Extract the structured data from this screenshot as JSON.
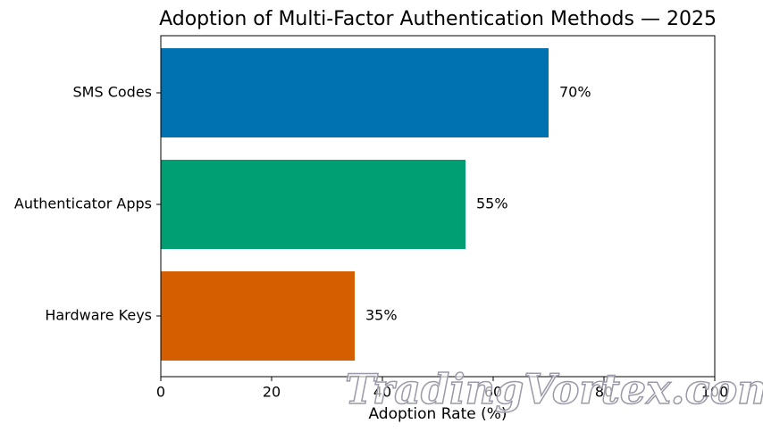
{
  "chart_data": {
    "type": "barh",
    "title": "Adoption of Multi-Factor Authentication Methods — 2025",
    "x_label": "Adoption Rate (%)",
    "categories": [
      "SMS Codes",
      "Authenticator Apps",
      "Hardware Keys"
    ],
    "values": [
      70,
      55,
      35
    ],
    "value_labels": [
      "70%",
      "55%",
      "35%"
    ],
    "colors": [
      "#0072b2",
      "#009e73",
      "#d55e00"
    ],
    "xlim": [
      0,
      100
    ],
    "xticks": [
      0,
      20,
      40,
      60,
      80,
      100
    ],
    "watermark": "TradingVortex.com"
  }
}
